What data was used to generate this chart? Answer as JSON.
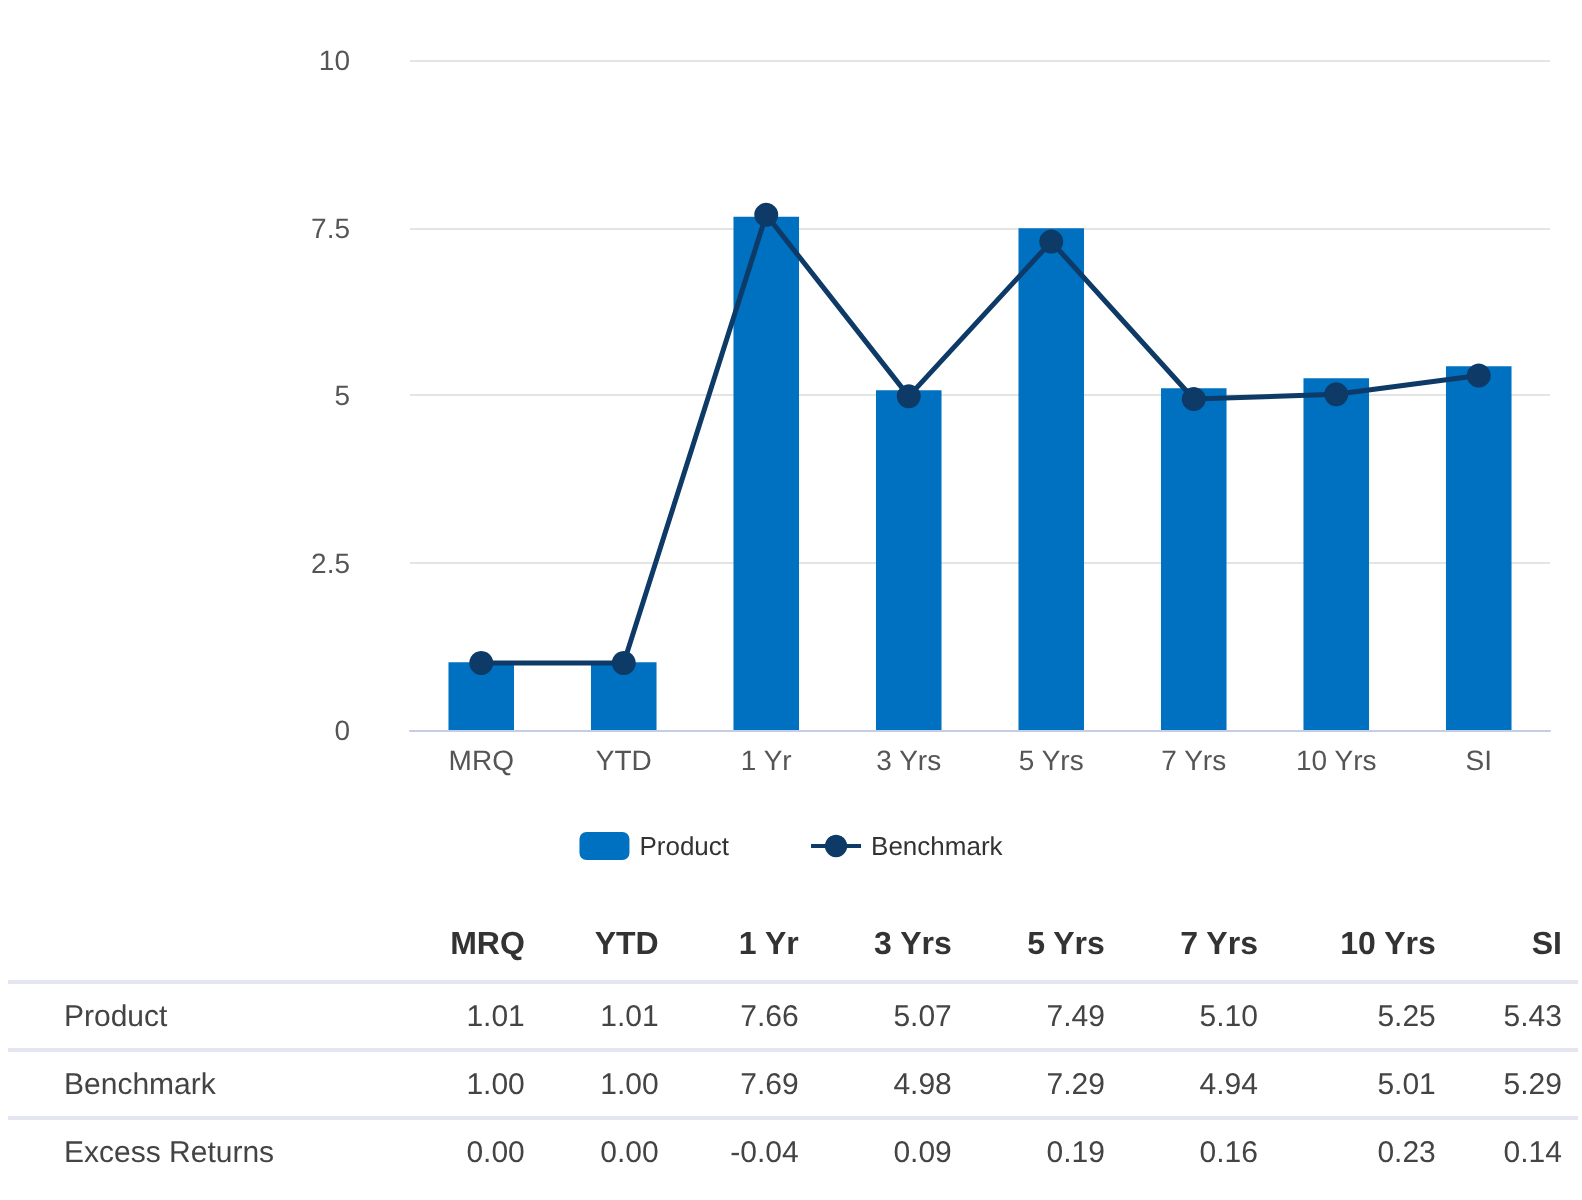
{
  "chart_data": [
    {
      "type": "bar",
      "categories": [
        "MRQ",
        "YTD",
        "1 Yr",
        "3 Yrs",
        "5 Yrs",
        "7 Yrs",
        "10 Yrs",
        "SI"
      ],
      "series": [
        {
          "name": "Product",
          "color": "#0070c0",
          "values": [
            1.01,
            1.01,
            7.66,
            5.07,
            7.49,
            5.1,
            5.25,
            5.43
          ],
          "value_labels": [
            "1.01",
            "1.01",
            "7.66",
            "5.07",
            "7.49",
            "5.10",
            "5.25",
            "5.43"
          ]
        },
        {
          "name": "Benchmark",
          "type": "line",
          "color": "#0d3a66",
          "marker": "circle",
          "values": [
            1.0,
            1.0,
            7.69,
            4.98,
            7.29,
            4.94,
            5.01,
            5.29
          ],
          "value_labels": [
            "1.00",
            "1.00",
            "7.69",
            "4.98",
            "7.29",
            "4.94",
            "5.01",
            "5.29"
          ]
        }
      ],
      "ylim": [
        0,
        10
      ],
      "yticks": [
        0,
        2.5,
        5,
        7.5,
        10
      ],
      "grid": "y",
      "legend": "bottom"
    },
    {
      "type": "other",
      "series": [
        {
          "name": "Excess Returns",
          "values": [
            0.0,
            0.0,
            -0.04,
            0.09,
            0.19,
            0.16,
            0.23,
            0.14
          ],
          "value_labels": [
            "0.00",
            "0.00",
            "-0.04",
            "0.09",
            "0.19",
            "0.16",
            "0.23",
            "0.14"
          ]
        }
      ]
    }
  ]
}
